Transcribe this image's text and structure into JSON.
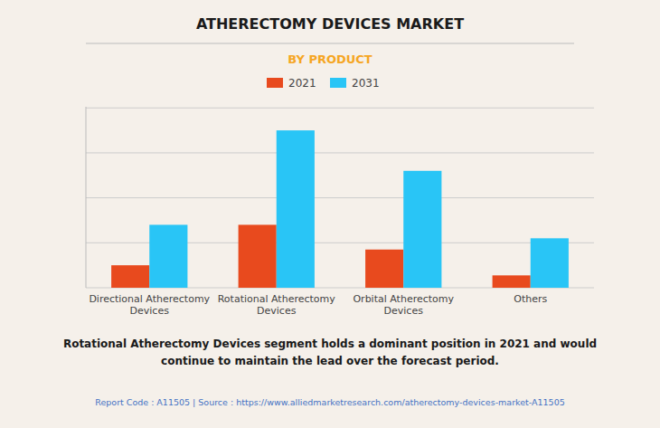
{
  "chart_data": {
    "type": "bar",
    "title": "ATHERECTOMY DEVICES MARKET",
    "subtitle": "BY PRODUCT",
    "categories": [
      "Directional Atherectomy\nDevices",
      "Rotational Atherectomy\nDevices",
      "Orbital Atherectomy\nDevices",
      "Others"
    ],
    "series": [
      {
        "name": "2021",
        "color": "#E84A1E",
        "values": [
          1.0,
          2.8,
          1.7,
          0.55
        ]
      },
      {
        "name": "2031",
        "color": "#29C5F6",
        "values": [
          2.8,
          7.0,
          5.2,
          2.2
        ]
      }
    ],
    "ylim": [
      0,
      8.05
    ],
    "yticks": [
      0,
      2,
      4,
      6,
      8
    ],
    "grid": true,
    "legend": "top",
    "tick_labels": "x",
    "annotations": [
      "Rotational Atherectomy Devices segment holds a dominant position in 2021 and would\ncontinue to maintain the lead over the forecast period.",
      "Report Code : A11505  |  Source : https://www.alliedmarketresearch.com/atherectomy-devices-market-A11505"
    ]
  }
}
